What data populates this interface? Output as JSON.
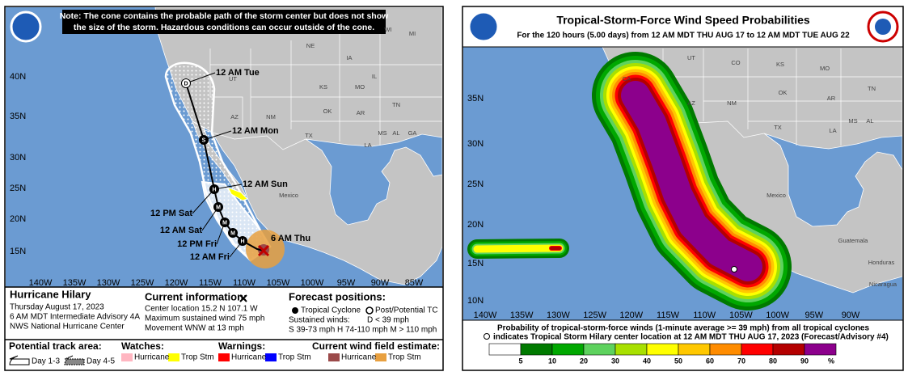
{
  "left_panel": {
    "note": [
      "Note: The cone contains the probable path of the storm center but does not show",
      "the size of the storm. Hazardous conditions can occur outside of the cone."
    ],
    "lat_labels": [
      "40N",
      "35N",
      "30N",
      "25N",
      "20N",
      "15N"
    ],
    "lon_labels": [
      "140W",
      "135W",
      "130W",
      "125W",
      "120W",
      "115W",
      "110W",
      "105W",
      "100W",
      "95W",
      "90W",
      "85W"
    ],
    "map_labels": [
      "NE",
      "IA",
      "WI",
      "MI",
      "IL",
      "UT",
      "KS",
      "MO",
      "OK",
      "AR",
      "TN",
      "AZ",
      "NM",
      "TX",
      "MS",
      "AL",
      "GA",
      "LA",
      "Mexico"
    ],
    "forecast_labels": [
      "12 AM Tue",
      "12 AM Mon",
      "12 AM Sun",
      "12 PM Sat",
      "12 AM Sat",
      "12 PM Fri",
      "12 AM Fri",
      "6 AM Thu"
    ],
    "point_symbols": [
      "D",
      "S",
      "H",
      "M",
      "M",
      "M",
      "H"
    ],
    "storm": {
      "name": "Hurricane Hilary",
      "lines": [
        "Thursday August 17, 2023",
        "6 AM MDT Intermediate Advisory 4A",
        "NWS National Hurricane Center"
      ]
    },
    "current": {
      "title": "Current information:",
      "lines": [
        "Center location 15.2 N 107.1 W",
        "Maximum sustained wind 75 mph",
        "Movement WNW at 13 mph"
      ]
    },
    "forecast_positions": {
      "title": "Forecast positions:",
      "tropical": "Tropical Cyclone",
      "post": "Post/Potential TC",
      "winds_title": "Sustained winds:",
      "d": "D < 39 mph",
      "scale": "S 39-73 mph  H 74-110 mph  M > 110 mph"
    },
    "legend": {
      "track": {
        "title": "Potential track area:",
        "items": [
          "Day 1-3",
          "Day 4-5"
        ]
      },
      "watches": {
        "title": "Watches:",
        "items": [
          "Hurricane",
          "Trop Stm"
        ]
      },
      "warnings": {
        "title": "Warnings:",
        "items": [
          "Hurricane",
          "Trop Stm"
        ]
      },
      "wind_field": {
        "title": "Current wind field estimate:",
        "items": [
          "Hurricane",
          "Trop Stm"
        ]
      }
    }
  },
  "right_panel": {
    "title": "Tropical-Storm-Force Wind Speed Probabilities",
    "subtitle": "For the 120 hours (5.00 days) from 12 AM MDT THU AUG 17 to 12 AM MDT TUE AUG 22",
    "lat_labels": [
      "35N",
      "30N",
      "25N",
      "20N",
      "15N",
      "10N"
    ],
    "lon_labels": [
      "140W",
      "135W",
      "130W",
      "125W",
      "120W",
      "115W",
      "110W",
      "105W",
      "100W",
      "95W",
      "90W"
    ],
    "map_labels": [
      "UT",
      "CO",
      "KS",
      "MO",
      "OK",
      "AR",
      "TN",
      "AZ",
      "NM",
      "TX",
      "LA",
      "MS",
      "AL",
      "CA",
      "Mexico",
      "Guatemala",
      "Honduras",
      "Nicaragua"
    ],
    "caption": [
      "Probability of tropical-storm-force winds (1-minute average >= 39 mph) from all tropical cyclones",
      "indicates Tropical Storm Hilary center location at 12 AM MDT THU AUG 17, 2023 (Forecast/Advisory #4)"
    ],
    "scale": {
      "thresholds": [
        5,
        10,
        20,
        30,
        40,
        50,
        60,
        70,
        80,
        90
      ],
      "unit": "%",
      "colors": [
        "#ffffff",
        "#007a00",
        "#00a800",
        "#5ed25e",
        "#a8e000",
        "#ffff00",
        "#ffc800",
        "#ff8c00",
        "#ff0000",
        "#b40000",
        "#8c008c"
      ]
    }
  }
}
